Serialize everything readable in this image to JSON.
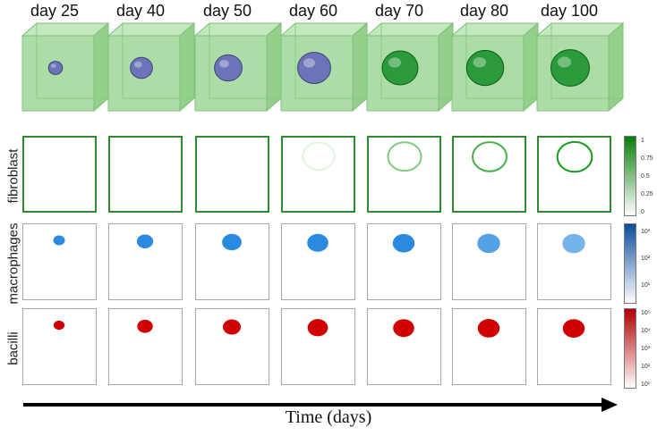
{
  "days": [
    {
      "label": "day 25",
      "size": 0.1,
      "cell": "blue",
      "fib": 0.0,
      "mac": 0.14,
      "bac": 0.12
    },
    {
      "label": "day 40",
      "size": 0.22,
      "cell": "blue",
      "fib": 0.0,
      "mac": 0.26,
      "bac": 0.24
    },
    {
      "label": "day 50",
      "size": 0.3,
      "cell": "blue",
      "fib": 0.0,
      "mac": 0.34,
      "bac": 0.3
    },
    {
      "label": "day 60",
      "size": 0.38,
      "cell": "blue",
      "fib": 0.12,
      "mac": 0.38,
      "bac": 0.36
    },
    {
      "label": "day 70",
      "size": 0.42,
      "cell": "green",
      "fib": 0.55,
      "mac": 0.4,
      "bac": 0.38
    },
    {
      "label": "day 80",
      "size": 0.44,
      "cell": "green",
      "fib": 0.8,
      "mac": 0.42,
      "bac": 0.4
    },
    {
      "label": "day 100",
      "size": 0.46,
      "cell": "green",
      "fib": 1.0,
      "mac": 0.42,
      "bac": 0.4
    }
  ],
  "rows": {
    "fibroblast": {
      "label": "fibroblast",
      "color": "#1a9b1a",
      "ticks": [
        "1",
        "0.75",
        "0.5",
        "0.25",
        "0"
      ]
    },
    "macrophages": {
      "label": "macrophages",
      "color": "#1f63b5",
      "ticks": [
        "10³",
        "10²",
        "10¹"
      ]
    },
    "bacilli": {
      "label": "bacilli",
      "color": "#c00000",
      "ticks": [
        "10⁵",
        "10⁴",
        "10³",
        "10²",
        "10¹"
      ]
    }
  },
  "axis": {
    "label": "Time (days)"
  },
  "colors": {
    "cube_face": "#a9dca3",
    "cube_edge": "#7fbf78",
    "granuloma_early": "#6d73b8",
    "granuloma_late": "#2a9a3a",
    "fibroblast": "#1a9b1a",
    "macrophage": "#2a8ae0",
    "bacilli": "#d00000"
  }
}
